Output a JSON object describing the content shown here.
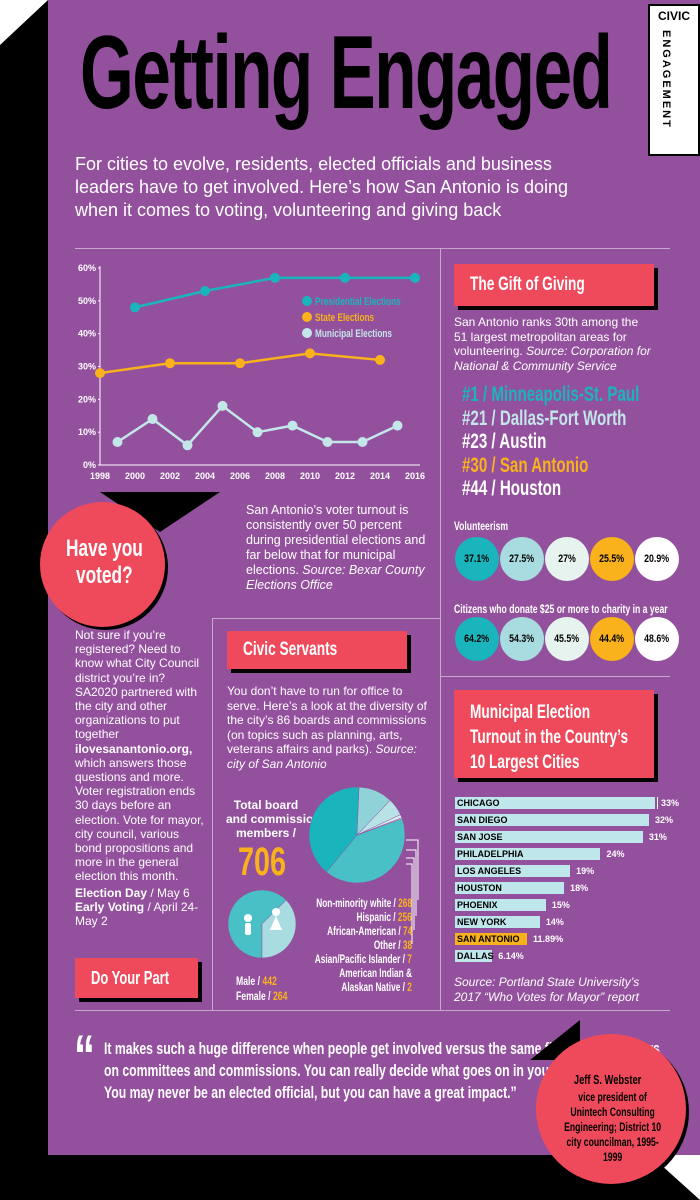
{
  "title": "Getting Engaged",
  "intro": "For cities to evolve, residents, elected officials and business leaders have to get involved. Here’s how San Antonio is doing when it comes to voting, volunteering and giving back",
  "tab": {
    "civic": "CIVIC",
    "engagement": "ENGAGEMENT"
  },
  "colors": {
    "panel": "#93509d",
    "red": "#ef4a5b",
    "teal": "#1ab5bc",
    "orange": "#f9b21b",
    "lightblue": "#c3e6e9"
  },
  "turnout": {
    "description": "San Antonio’s voter turnout is consistently over 50 percent during presidential elections and far below that for municipal elections.",
    "source": "Source: Bexar County Elections Office"
  },
  "chart_data": [
    {
      "type": "line",
      "x": [
        1998,
        2000,
        2002,
        2004,
        2005,
        2006,
        2008,
        2010,
        2012,
        2013,
        2014,
        2015,
        2016
      ],
      "x_ticks": [
        "1998",
        "2000",
        "2002",
        "2004",
        "2006",
        "2008",
        "2010",
        "2012",
        "2014",
        "2016"
      ],
      "y_ticks": [
        "0%",
        "10%",
        "20%",
        "30%",
        "40%",
        "50%",
        "60%"
      ],
      "ylim": [
        0,
        60
      ],
      "series": [
        {
          "name": "Presidential Elections",
          "color": "#1ab5bc",
          "points": [
            [
              2000,
              48
            ],
            [
              2004,
              53
            ],
            [
              2008,
              57
            ],
            [
              2012,
              57
            ],
            [
              2016,
              57
            ]
          ]
        },
        {
          "name": "State Elections",
          "color": "#f9b21b",
          "points": [
            [
              1998,
              28
            ],
            [
              2002,
              31
            ],
            [
              2006,
              31
            ],
            [
              2010,
              34
            ],
            [
              2014,
              32
            ]
          ]
        },
        {
          "name": "Municipal Elections",
          "color": "#c3e6e9",
          "points": [
            [
              1999,
              7
            ],
            [
              2001,
              14
            ],
            [
              2003,
              6
            ],
            [
              2005,
              18
            ],
            [
              2007,
              10
            ],
            [
              2009,
              12
            ],
            [
              2011,
              7
            ],
            [
              2013,
              7
            ],
            [
              2015,
              12
            ]
          ]
        }
      ]
    },
    {
      "type": "bar",
      "title": "Municipal Election Turnout in the Country’s 10 Largest Cities",
      "categories": [
        "CHICAGO",
        "SAN DIEGO",
        "SAN JOSE",
        "PHILADELPHIA",
        "LOS ANGELES",
        "HOUSTON",
        "PHOENIX",
        "NEW YORK",
        "SAN ANTONIO",
        "DALLAS"
      ],
      "values": [
        33,
        32,
        31,
        24,
        19,
        18,
        15,
        14,
        11.89,
        6.14
      ],
      "labels": [
        "33%",
        "32%",
        "31%",
        "24%",
        "19%",
        "18%",
        "15%",
        "14%",
        "11.89%",
        "6.14%"
      ],
      "xlim": [
        0,
        33
      ]
    },
    {
      "type": "pie",
      "title": "Total board and commission members",
      "total": "706",
      "categories": [
        "Non-minority white",
        "Hispanic",
        "African-American",
        "Other",
        "Asian/Pacific Islander",
        "American Indian & Alaskan Native"
      ],
      "values": [
        268,
        256,
        74,
        38,
        7,
        2
      ]
    },
    {
      "type": "pie",
      "categories": [
        "Male",
        "Female"
      ],
      "values": [
        442,
        264
      ]
    }
  ],
  "gift": {
    "heading": "The Gift of Giving",
    "text": "San Antonio ranks 30th among the 51 largest metropolitan areas for volunteering.",
    "source": "Source: Corporation for National & Community Service",
    "ranks": [
      {
        "rank": "#1",
        "city": "Minneapolis-St. Paul",
        "color": "#1ab5bc"
      },
      {
        "rank": "#21",
        "city": "Dallas-Fort Worth",
        "color": "#c3e6e9"
      },
      {
        "rank": "#23",
        "city": "Austin",
        "color": "#ffffff"
      },
      {
        "rank": "#30",
        "city": "San Antonio",
        "color": "#f9b21b"
      },
      {
        "rank": "#44",
        "city": "Houston",
        "color": "#ffffff"
      }
    ],
    "volunteerism_label": "Volunteerism",
    "volunteerism": [
      {
        "value": "37.1%",
        "color": "#1ab5bc"
      },
      {
        "value": "27.5%",
        "color": "#a9dce0"
      },
      {
        "value": "27%",
        "color": "#e6f3ef"
      },
      {
        "value": "25.5%",
        "color": "#f9b21b"
      },
      {
        "value": "20.9%",
        "color": "#ffffff"
      }
    ],
    "donate_label": "Citizens who donate $25 or more to charity in a year",
    "donate": [
      {
        "value": "64.2%",
        "color": "#1ab5bc"
      },
      {
        "value": "54.3%",
        "color": "#a9dce0"
      },
      {
        "value": "45.5%",
        "color": "#e6f3ef"
      },
      {
        "value": "44.4%",
        "color": "#f9b21b"
      },
      {
        "value": "48.6%",
        "color": "#ffffff"
      }
    ]
  },
  "voted": {
    "heading_line1": "Have you",
    "heading_line2": "voted?",
    "body_a": "Not sure if you’re registered? Need to know what City Council district you’re in? SA2020 partnered with the city and other organizations to put together",
    "site": "ilovesanantonio.org,",
    "body_b": "which answers those questions and more. Voter registration ends 30 days before an election. Vote for mayor, city council, various bond propositions and more in the general election this month.",
    "election_day_label": "Election Day",
    "election_day": "/ May 6",
    "early_label": "Early Voting",
    "early": "/ April 24-May 2",
    "part_button": "Do Your Part"
  },
  "civic": {
    "heading": "Civic Servants",
    "text": "You don’t have to run for office to serve. Here’s a look at the diversity of the city’s 86 boards and commissions (on topics such as planning, arts, veterans affairs and parks).",
    "source": "Source: city of San Antonio",
    "total_label_1": "Total board",
    "total_label_2": "and commission",
    "total_label_3": "members /",
    "total": "706",
    "legend": [
      {
        "label": "Non-minority white",
        "value": "268"
      },
      {
        "label": "Hispanic",
        "value": "256"
      },
      {
        "label": "African-American",
        "value": "74"
      },
      {
        "label": "Other",
        "value": "38"
      },
      {
        "label": "Asian/Pacific Islander",
        "value": "7"
      },
      {
        "label": "American Indian &",
        "value": ""
      },
      {
        "label": "Alaskan Native",
        "value": "2"
      }
    ],
    "male_label": "Male /",
    "male": "442",
    "female_label": "Female /",
    "female": "264"
  },
  "municipal": {
    "heading_1": "Municipal Election",
    "heading_2": "Turnout in the Country’s",
    "heading_3": "10 Largest Cities",
    "source": "Source: Portland State University’s 2017 “Who Votes for Mayor” report"
  },
  "quote": {
    "mark": "“",
    "text": "It makes such a huge difference when people get involved versus the same five or six members on committees and commissions. You can really decide what goes on in your neighborhood. You may never be an elected official, but you can have a great impact.”",
    "name": "Jeff S. Webster",
    "role": "vice president of Unintech Consulting Engineering; District 10 city councilman, 1995-1999"
  }
}
